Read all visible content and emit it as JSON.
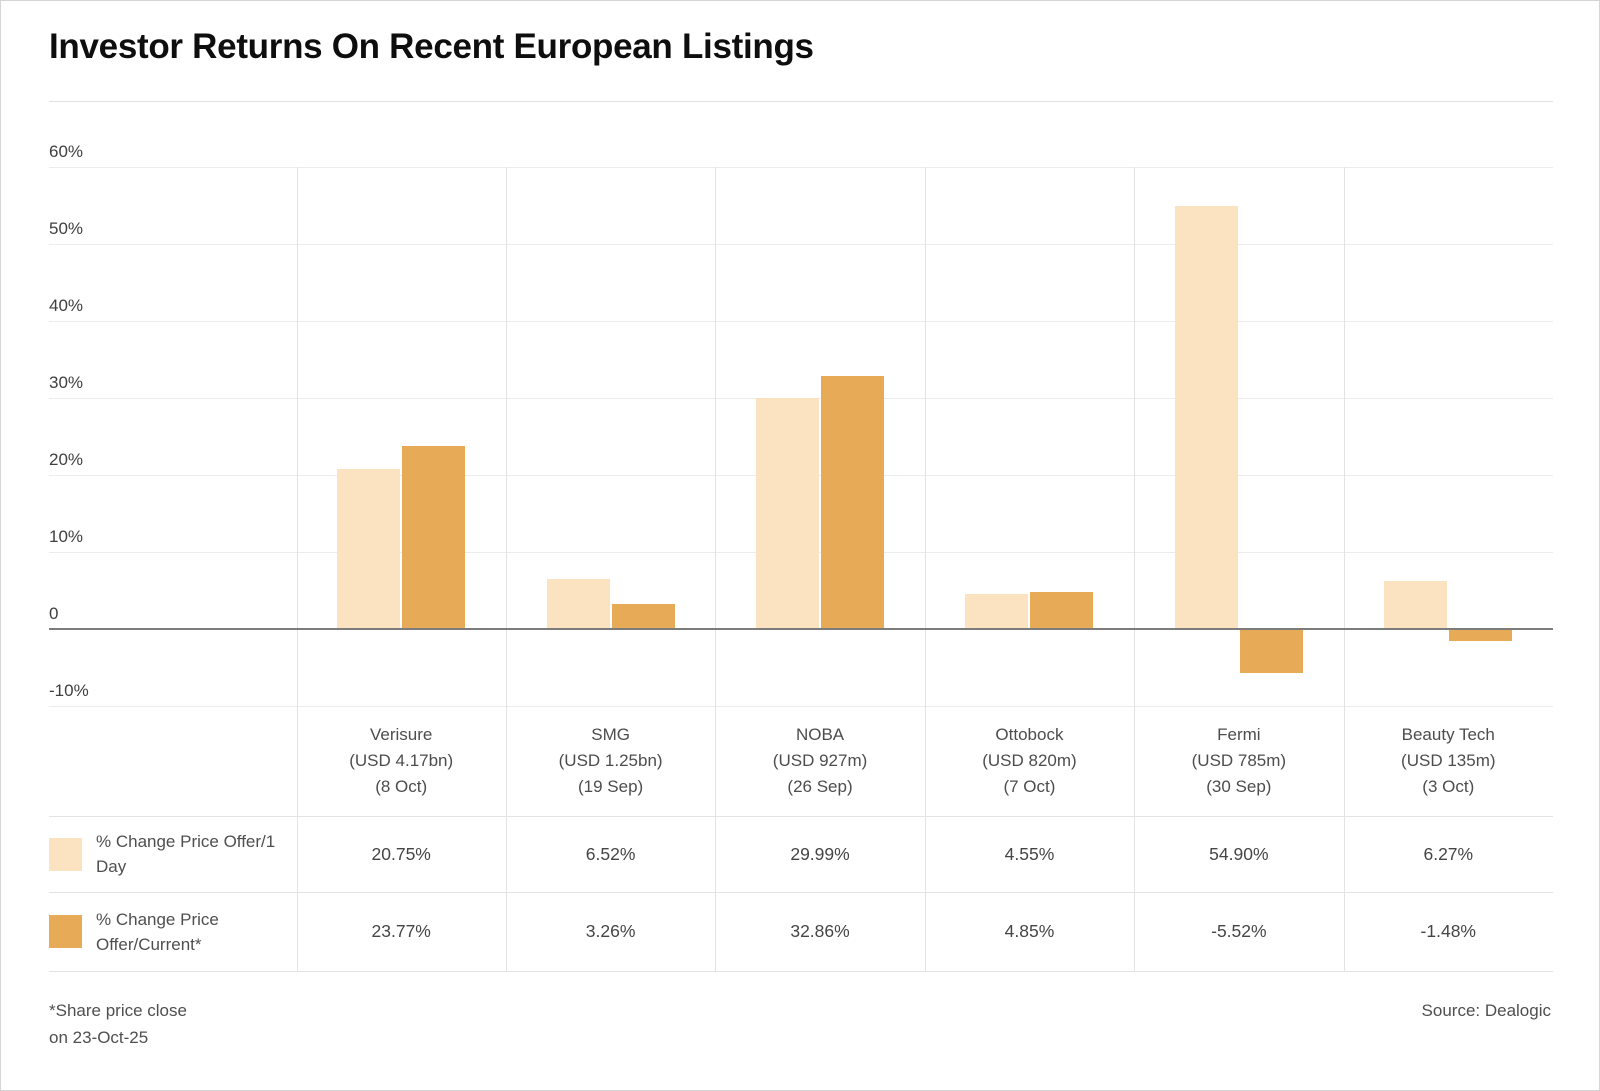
{
  "title": "Investor Returns On Recent European Listings",
  "footnote": {
    "line1": "*Share price close",
    "line2": "on 23-Oct-25"
  },
  "source": "Source: Dealogic",
  "colors": {
    "series_1_day": "#FBE3C1",
    "series_current": "#E7AB57",
    "zero_line": "#7c7c7c",
    "gridline": "#ececec"
  },
  "chart_data": {
    "type": "bar",
    "title": "Investor Returns On Recent European Listings",
    "categories": [
      "Verisure (USD 4.17bn) (8 Oct)",
      "SMG (USD 1.25bn) (19 Sep)",
      "NOBA (USD 927m) (26 Sep)",
      "Ottobock (USD 820m) (7 Oct)",
      "Fermi (USD 785m) (30 Sep)",
      "Beauty Tech (USD 135m) (3 Oct)"
    ],
    "category_label_lines": [
      [
        "Verisure",
        "(USD 4.17bn)",
        "(8 Oct)"
      ],
      [
        "SMG",
        "(USD 1.25bn)",
        "(19 Sep)"
      ],
      [
        "NOBA",
        "(USD 927m)",
        "(26 Sep)"
      ],
      [
        "Ottobock",
        "(USD 820m)",
        "(7 Oct)"
      ],
      [
        "Fermi",
        "(USD 785m)",
        "(30 Sep)"
      ],
      [
        "Beauty Tech",
        "(USD 135m)",
        "(3 Oct)"
      ]
    ],
    "category_slugs": [
      "verisure",
      "smg",
      "noba",
      "ottobock",
      "fermi",
      "beauty-tech"
    ],
    "series": [
      {
        "name": "% Change Price Offer/1 Day",
        "slug": "offer-1-day",
        "color": "#FBE3C1",
        "values": [
          20.75,
          6.52,
          29.99,
          4.55,
          54.9,
          6.27
        ],
        "display_values": [
          "20.75%",
          "6.52%",
          "29.99%",
          "4.55%",
          "54.90%",
          "6.27%"
        ]
      },
      {
        "name": "% Change Price Offer/Current*",
        "slug": "offer-current",
        "color": "#E7AB57",
        "values": [
          23.77,
          3.26,
          32.86,
          4.85,
          -5.52,
          -1.48
        ],
        "display_values": [
          "23.77%",
          "3.26%",
          "32.86%",
          "4.85%",
          "-5.52%",
          "-1.48%"
        ]
      }
    ],
    "ylim": [
      -10,
      60
    ],
    "ytick_values": [
      60,
      50,
      40,
      30,
      20,
      10,
      0,
      -10
    ],
    "ytick_labels": [
      "60%",
      "50%",
      "40%",
      "30%",
      "20%",
      "10%",
      "0",
      "-10%"
    ],
    "grid": true,
    "legend_position": "table-left-column"
  }
}
